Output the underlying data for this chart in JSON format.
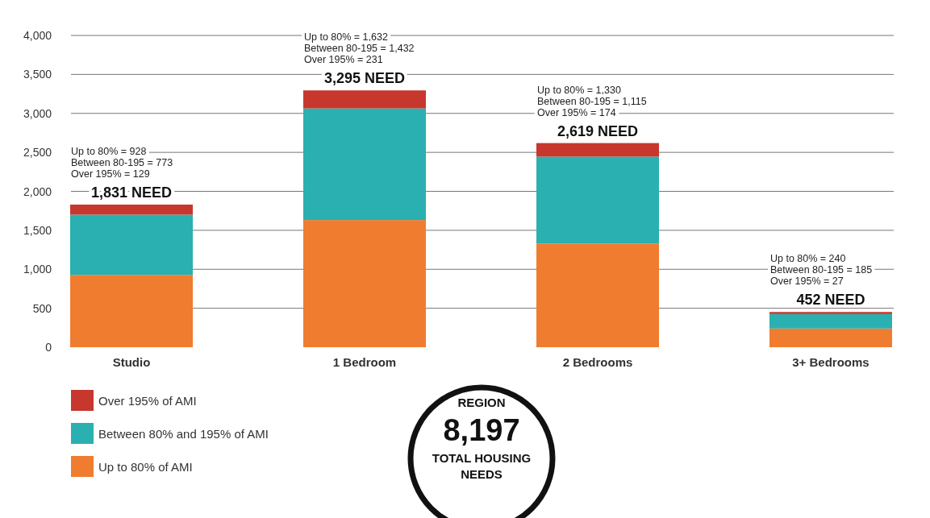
{
  "chart_data": {
    "type": "bar",
    "stacked": true,
    "categories": [
      "Studio",
      "1 Bedroom",
      "2 Bedrooms",
      "3+ Bedrooms"
    ],
    "series": [
      {
        "name": "Up to 80% of AMI",
        "color": "#f07c30",
        "values": [
          928,
          1632,
          1330,
          240
        ]
      },
      {
        "name": "Between 80% and 195% of AMI",
        "color": "#2ab0b0",
        "values": [
          773,
          1432,
          1115,
          185
        ]
      },
      {
        "name": "Over 195% of AMI",
        "color": "#c8372d",
        "values": [
          129,
          231,
          174,
          27
        ]
      }
    ],
    "ylim": [
      0,
      4000
    ],
    "yticks": [
      {
        "value": 0,
        "label": "0"
      },
      {
        "value": 500,
        "label": "500"
      },
      {
        "value": 1000,
        "label": "1,000"
      },
      {
        "value": 1500,
        "label": "1,500"
      },
      {
        "value": 2000,
        "label": "2,000"
      },
      {
        "value": 2500,
        "label": "2,500"
      },
      {
        "value": 3000,
        "label": "3,000"
      },
      {
        "value": 3500,
        "label": "3,500"
      },
      {
        "value": 4000,
        "label": "4,000"
      }
    ],
    "grid": "y",
    "legend": "bottom left",
    "totals": [
      "1,831 NEED",
      "3,295 NEED",
      "2,619 NEED",
      "452 NEED"
    ],
    "annotations": [
      {
        "text": "Up to 80% = 928\nBetween 80-195 = 773\nOver 195% = 129",
        "x": "Studio",
        "y": 1831
      },
      {
        "text": "Up to 80% = 1,632\nBetween 80-195 = 1,432\nOver 195% = 231",
        "x": "1 Bedroom",
        "y": 3295
      },
      {
        "text": "Up to 80% = 1,330\nBetween 80-195 = 1,115\nOver 195% = 174",
        "x": "2 Bedrooms",
        "y": 2619
      },
      {
        "text": "Up to 80% = 240\nBetween 80-195 = 185\nOver 195% = 27",
        "x": "3+ Bedrooms",
        "y": 452
      },
      "REGION",
      "8,197",
      "TOTAL HOUSING\nNEEDS"
    ]
  }
}
